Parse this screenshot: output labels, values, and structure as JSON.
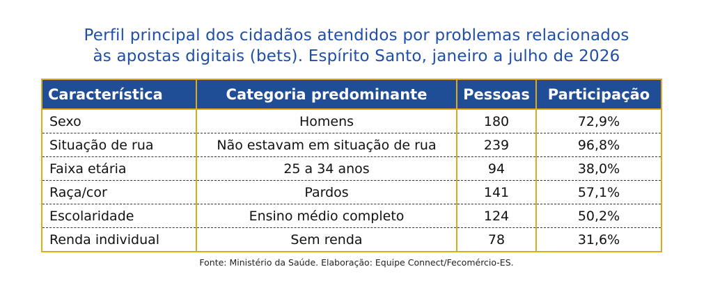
{
  "title": {
    "line1": "Perfil principal dos cidadãos atendidos por problemas relacionados",
    "line2": "às apostas digitais (bets). Espírito Santo, janeiro a julho de 2026"
  },
  "table": {
    "headers": [
      "Característica",
      "Categoria predominante",
      "Pessoas",
      "Participação"
    ],
    "rows": [
      [
        "Sexo",
        "Homens",
        "180",
        "72,9%"
      ],
      [
        "Situação de rua",
        "Não estavam em situação de rua",
        "239",
        "96,8%"
      ],
      [
        "Faixa etária",
        "25 a 34 anos",
        "94",
        "38,0%"
      ],
      [
        "Raça/cor",
        "Pardos",
        "141",
        "57,1%"
      ],
      [
        "Escolaridade",
        "Ensino médio completo",
        "124",
        "50,2%"
      ],
      [
        "Renda individual",
        "Sem renda",
        "78",
        "31,6%"
      ]
    ]
  },
  "source": "Fonte: Ministério da Saúde. Elaboração: Equipe Connect/Fecomércio-ES.",
  "colors": {
    "title": "#1f4fa8",
    "header_bg": "#1f4e96",
    "border": "#e1a91c"
  }
}
